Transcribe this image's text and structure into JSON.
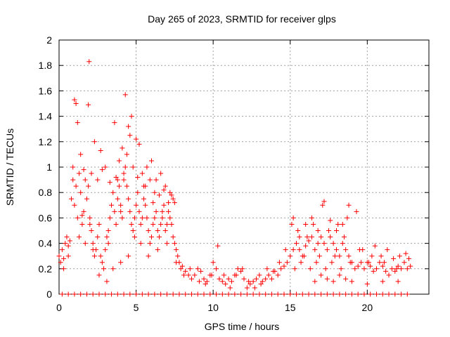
{
  "chart_data": {
    "type": "scatter",
    "title": "Day 265 of 2023, SRMTID for receiver glps",
    "xlabel": "GPS time / hours",
    "ylabel": "SRMTID / TECUs",
    "xlim": [
      0,
      24
    ],
    "ylim": [
      0,
      2
    ],
    "xticks": [
      0,
      5,
      10,
      15,
      20
    ],
    "yticks": [
      0,
      0.2,
      0.4,
      0.6,
      0.8,
      1,
      1.2,
      1.4,
      1.6,
      1.8,
      2
    ],
    "xtick_labels": [
      "0",
      "5",
      "10",
      "15",
      "20"
    ],
    "ytick_labels": [
      "0",
      "0.2",
      "0.4",
      "0.6",
      "0.8",
      "1",
      "1.2",
      "1.4",
      "1.6",
      "1.8",
      "2"
    ],
    "grid": true,
    "legend": "none",
    "marker": "+",
    "series": [
      {
        "name": "SRMTID",
        "color": "#ff0000",
        "x": [
          0.0,
          0.1,
          0.2,
          0.3,
          0.4,
          0.5,
          0.6,
          0.7,
          0.8,
          0.9,
          1.0,
          1.1,
          1.2,
          1.3,
          1.4,
          1.5,
          1.6,
          1.7,
          1.8,
          1.9,
          2.0,
          2.1,
          2.2,
          2.3,
          2.4,
          2.5,
          2.6,
          2.7,
          2.8,
          2.9,
          3.0,
          3.1,
          3.2,
          3.3,
          3.4,
          3.5,
          3.6,
          3.7,
          3.8,
          3.9,
          4.0,
          4.1,
          4.2,
          4.3,
          4.4,
          4.5,
          4.6,
          4.7,
          4.8,
          4.9,
          5.0,
          5.1,
          5.2,
          5.3,
          5.4,
          5.5,
          5.6,
          5.7,
          5.8,
          5.9,
          6.0,
          6.1,
          6.2,
          6.3,
          6.4,
          6.5,
          6.6,
          6.7,
          6.8,
          6.9,
          7.0,
          7.1,
          7.2,
          7.3,
          7.4,
          7.5,
          7.6,
          7.7,
          7.8,
          7.9,
          8.0,
          8.2,
          8.4,
          8.6,
          8.8,
          9.0,
          9.2,
          9.4,
          9.6,
          9.8,
          10.0,
          10.2,
          10.4,
          10.6,
          10.8,
          11.0,
          11.2,
          11.4,
          11.6,
          11.8,
          12.0,
          12.2,
          12.4,
          12.6,
          12.8,
          13.0,
          13.2,
          13.4,
          13.6,
          13.8,
          14.0,
          14.2,
          14.4,
          14.6,
          14.8,
          15.0,
          15.2,
          15.4,
          15.6,
          15.8,
          16.0,
          16.2,
          16.4,
          16.6,
          16.8,
          17.0,
          17.2,
          17.4,
          17.6,
          17.8,
          18.0,
          18.2,
          18.4,
          18.6,
          18.8,
          19.0,
          19.2,
          19.4,
          19.6,
          19.8,
          20.0,
          20.2,
          20.4,
          20.6,
          20.8,
          21.0,
          21.2,
          21.4,
          21.6,
          21.8,
          22.0,
          22.2,
          22.4,
          22.6,
          22.8,
          1.0,
          1.1,
          1.2,
          1.9,
          1.95,
          2.3,
          2.7,
          3.0,
          3.6,
          3.9,
          4.1,
          4.3,
          4.4,
          4.5,
          4.6,
          4.7,
          5.0,
          5.2,
          5.4,
          5.7,
          6.0,
          6.3,
          6.6,
          6.9,
          7.2,
          7.4,
          0.9,
          1.4,
          1.6,
          2.1,
          2.5,
          2.8,
          3.3,
          3.7,
          4.2,
          4.8,
          5.1,
          5.5,
          5.9,
          6.2,
          6.5,
          6.8,
          7.1,
          7.3,
          0.3,
          0.6,
          1.3,
          1.7,
          2.2,
          2.6,
          3.1,
          3.5,
          4.0,
          4.9,
          5.3,
          5.8,
          6.4,
          7.0,
          7.6,
          8.1,
          8.5,
          9.1,
          9.5,
          9.9,
          10.3,
          10.7,
          11.1,
          11.5,
          11.9,
          12.3,
          12.7,
          13.1,
          13.5,
          13.9,
          14.3,
          14.7,
          15.1,
          15.3,
          15.5,
          15.7,
          15.9,
          16.1,
          16.3,
          16.5,
          16.7,
          16.9,
          17.1,
          17.3,
          17.5,
          17.7,
          17.9,
          18.1,
          18.3,
          18.5,
          18.7,
          18.9,
          19.3,
          19.7,
          20.1,
          20.5,
          20.9,
          21.3,
          21.7,
          22.1,
          22.5,
          15.2,
          15.6,
          16.0,
          16.4,
          16.8,
          17.2,
          17.6,
          18.0,
          18.4,
          18.8,
          19.5,
          20.3,
          21.1,
          21.9,
          22.7,
          16.6,
          17.0,
          17.4,
          17.8,
          18.6,
          18.2,
          19.0,
          20.0,
          21.0,
          22.0,
          1.5,
          2.0,
          3.2,
          3.8,
          4.0,
          4.5,
          5.6,
          6.1,
          6.7,
          7.5
        ],
        "y": [
          0.3,
          0.25,
          0.35,
          0.28,
          0.4,
          0.45,
          0.38,
          0.42,
          0.75,
          0.9,
          0.7,
          0.85,
          0.6,
          0.95,
          0.8,
          0.55,
          0.65,
          0.9,
          0.75,
          0.85,
          0.6,
          0.5,
          0.4,
          0.3,
          0.35,
          0.45,
          0.55,
          0.3,
          0.25,
          0.2,
          0.35,
          0.45,
          0.5,
          0.6,
          0.7,
          0.8,
          0.65,
          0.55,
          0.75,
          0.85,
          0.7,
          0.6,
          0.9,
          1.0,
          0.85,
          0.75,
          0.65,
          0.55,
          0.5,
          0.6,
          0.7,
          0.8,
          0.65,
          0.55,
          0.6,
          0.75,
          0.7,
          0.6,
          0.5,
          0.4,
          0.45,
          0.55,
          0.6,
          0.65,
          0.5,
          0.45,
          0.55,
          0.6,
          0.7,
          0.5,
          0.55,
          0.65,
          0.6,
          0.55,
          0.45,
          0.4,
          0.35,
          0.3,
          0.25,
          0.2,
          0.22,
          0.18,
          0.15,
          0.12,
          0.15,
          0.2,
          0.18,
          0.12,
          0.1,
          0.15,
          0.25,
          0.2,
          0.12,
          0.1,
          0.08,
          0.12,
          0.1,
          0.15,
          0.2,
          0.18,
          0.12,
          0.05,
          0.08,
          0.1,
          0.12,
          0.15,
          0.1,
          0.12,
          0.15,
          0.12,
          0.18,
          0.15,
          0.2,
          0.22,
          0.25,
          0.3,
          0.35,
          0.4,
          0.35,
          0.3,
          0.38,
          0.42,
          0.45,
          0.35,
          0.4,
          0.45,
          0.4,
          0.35,
          0.45,
          0.4,
          0.35,
          0.3,
          0.4,
          0.35,
          0.3,
          0.25,
          0.2,
          0.22,
          0.25,
          0.2,
          0.25,
          0.22,
          0.18,
          0.2,
          0.25,
          0.22,
          0.18,
          0.15,
          0.2,
          0.18,
          0.22,
          0.2,
          0.25,
          0.2,
          0.22,
          1.53,
          1.5,
          1.35,
          1.49,
          1.83,
          1.2,
          1.13,
          1.0,
          1.35,
          1.05,
          1.15,
          1.57,
          1.1,
          1.32,
          1.25,
          1.4,
          1.22,
          1.18,
          0.95,
          1.0,
          1.05,
          0.9,
          0.95,
          0.85,
          0.8,
          0.75,
          1.0,
          1.1,
          0.98,
          0.95,
          0.9,
          0.98,
          0.88,
          0.92,
          0.95,
          1.0,
          0.92,
          0.85,
          0.9,
          0.8,
          0.78,
          0.82,
          0.72,
          0.78,
          0.2,
          0.3,
          0.45,
          0.4,
          0.35,
          0.15,
          0.1,
          0.2,
          0.25,
          0.45,
          0.4,
          0.3,
          0.35,
          0.4,
          0.25,
          0.15,
          0.2,
          0.1,
          0.08,
          0.15,
          0.38,
          0.15,
          0.05,
          0.15,
          0.2,
          0.1,
          0.05,
          0.08,
          0.2,
          0.18,
          0.25,
          0.35,
          0.55,
          0.2,
          0.5,
          0.25,
          0.3,
          0.45,
          0.2,
          0.55,
          0.25,
          0.3,
          0.7,
          0.2,
          0.5,
          0.25,
          0.3,
          0.55,
          0.2,
          0.45,
          0.6,
          0.25,
          0.65,
          0.35,
          0.25,
          0.38,
          0.3,
          0.35,
          0.28,
          0.3,
          0.32,
          0.6,
          0.45,
          0.55,
          0.6,
          0.5,
          0.73,
          0.58,
          0.5,
          0.55,
          0.7,
          0.35,
          0.3,
          0.25,
          0.2,
          0.28,
          0.1,
          0.15,
          0.12,
          0.1,
          0.12,
          0.15,
          0.1,
          0.08,
          0.1,
          0.1,
          0.62,
          0.55,
          0.4,
          0.9,
          0.65,
          0.3,
          0.85,
          0.72,
          0.65,
          0.72
        ]
      }
    ],
    "baseline_x": [
      0.2,
      0.6,
      1.0,
      1.4,
      1.8,
      2.2,
      2.6,
      3.0,
      3.4,
      3.8,
      4.2,
      4.6,
      5.0,
      5.4,
      5.8,
      6.2,
      6.6,
      7.0,
      7.4,
      7.8,
      8.2,
      8.6,
      9.0,
      9.4,
      9.8,
      10.2,
      10.6,
      11.0,
      11.4,
      11.8,
      12.2,
      12.6,
      13.0,
      13.4,
      13.8,
      14.2,
      14.6,
      15.0,
      15.4,
      15.8,
      16.2,
      16.6,
      17.0,
      17.4,
      17.8,
      18.2,
      18.6,
      19.0,
      19.4,
      19.8,
      20.2,
      20.6,
      21.0,
      21.4,
      21.8,
      22.2,
      22.6
    ]
  }
}
